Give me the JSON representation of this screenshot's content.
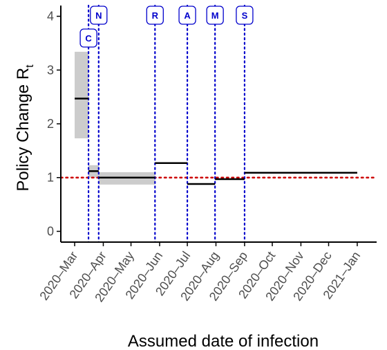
{
  "chart_data": {
    "type": "step",
    "title": "",
    "ylabel": "Policy Change R",
    "ylabel_subscript": "t",
    "xlabel": "Assumed date of infection",
    "x_ticks": [
      {
        "label": "2020–Mar",
        "date": "2020-03-01"
      },
      {
        "label": "2020–Apr",
        "date": "2020-04-01"
      },
      {
        "label": "2020–May",
        "date": "2020-05-01"
      },
      {
        "label": "2020–Jun",
        "date": "2020-06-01"
      },
      {
        "label": "2020–Jul",
        "date": "2020-07-01"
      },
      {
        "label": "2020–Aug",
        "date": "2020-08-01"
      },
      {
        "label": "2020–Sep",
        "date": "2020-09-01"
      },
      {
        "label": "2020–Oct",
        "date": "2020-10-01"
      },
      {
        "label": "2020–Nov",
        "date": "2020-11-01"
      },
      {
        "label": "2020–Dec",
        "date": "2020-12-01"
      },
      {
        "label": "2021–Jan",
        "date": "2021-01-01"
      }
    ],
    "y_ticks": [
      0,
      1,
      2,
      3,
      4
    ],
    "xlim": [
      "2020-02-15",
      "2021-01-22"
    ],
    "ylim": [
      -0.2,
      4.2
    ],
    "reference_line": {
      "y": 1,
      "color": "#cc0000",
      "style": "dotted"
    },
    "policy_lines": [
      {
        "label": "C",
        "date": "2020-03-16",
        "tag_level": "low"
      },
      {
        "label": "N",
        "date": "2020-03-27",
        "tag_level": "high"
      },
      {
        "label": "R",
        "date": "2020-05-27",
        "tag_level": "high"
      },
      {
        "label": "A",
        "date": "2020-07-01",
        "tag_level": "high"
      },
      {
        "label": "M",
        "date": "2020-07-31",
        "tag_level": "high"
      },
      {
        "label": "S",
        "date": "2020-09-01",
        "tag_level": "high"
      }
    ],
    "segments": [
      {
        "start": "2020-03-01",
        "end": "2020-03-16",
        "rt": 2.47,
        "lower": 1.73,
        "upper": 3.34
      },
      {
        "start": "2020-03-16",
        "end": "2020-03-27",
        "rt": 1.12,
        "lower": 1.0,
        "upper": 1.23
      },
      {
        "start": "2020-03-27",
        "end": "2020-05-27",
        "rt": 1.0,
        "lower": 0.87,
        "upper": 1.1
      },
      {
        "start": "2020-05-27",
        "end": "2020-07-01",
        "rt": 1.27,
        "lower": 1.27,
        "upper": 1.27
      },
      {
        "start": "2020-07-01",
        "end": "2020-07-31",
        "rt": 0.88,
        "lower": 0.88,
        "upper": 0.88
      },
      {
        "start": "2020-07-31",
        "end": "2020-09-01",
        "rt": 0.97,
        "lower": 0.97,
        "upper": 0.97
      },
      {
        "start": "2020-09-01",
        "end": "2021-01-01",
        "rt": 1.09,
        "lower": 1.09,
        "upper": 1.09
      }
    ],
    "grid": false,
    "colors": {
      "estimate": "#000000",
      "interval": "#cccccc",
      "policy_line": "#0000cc",
      "reference_line": "#cc0000",
      "axis": "#000000"
    }
  }
}
